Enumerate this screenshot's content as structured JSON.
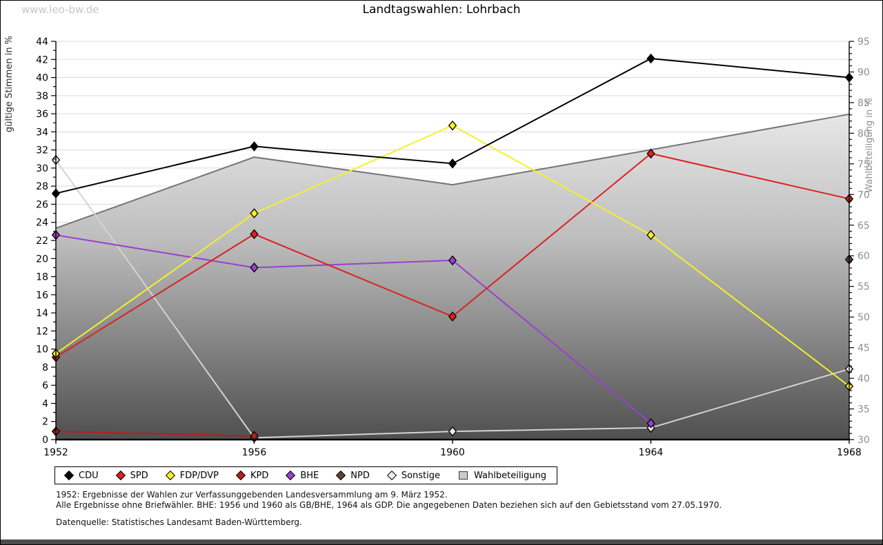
{
  "page": {
    "watermark": "www.leo-bw.de",
    "title": "Landtagswahlen: Lohrbach"
  },
  "chart_data": {
    "type": "line",
    "title": "Landtagswahlen: Lohrbach",
    "x": [
      1952,
      1956,
      1960,
      1964,
      1968
    ],
    "left_axis": {
      "label": "gültige Stimmen in %",
      "min": 0,
      "max": 44,
      "tick_step": 2,
      "minor_step": 1
    },
    "right_axis": {
      "label": "Wahlbeteiligung in %",
      "min": 30,
      "max": 95,
      "tick_step": 5,
      "minor_step": 1
    },
    "grid": "horizontal",
    "legend_position": "bottom",
    "series": [
      {
        "name": "CDU",
        "kind": "line",
        "axis": "left",
        "color": "#000000",
        "values": [
          27.2,
          32.4,
          30.5,
          42.1,
          40.0
        ]
      },
      {
        "name": "SPD",
        "kind": "line",
        "axis": "left",
        "color": "#dc2020",
        "values": [
          9.1,
          22.7,
          13.6,
          31.6,
          26.6
        ]
      },
      {
        "name": "FDP/DVP",
        "kind": "line",
        "axis": "left",
        "color": "#f5f02a",
        "values": [
          9.5,
          25.0,
          34.7,
          22.6,
          5.9
        ]
      },
      {
        "name": "KPD",
        "kind": "line",
        "axis": "left",
        "color": "#bb1c1c",
        "values": [
          0.9,
          0.4,
          null,
          null,
          null
        ]
      },
      {
        "name": "BHE",
        "kind": "line",
        "axis": "left",
        "color": "#9a3fcf",
        "values": [
          22.6,
          19.0,
          19.8,
          1.8,
          null
        ]
      },
      {
        "name": "NPD",
        "kind": "line",
        "axis": "left",
        "color": "#5e4433",
        "values": [
          null,
          null,
          null,
          null,
          19.9
        ]
      },
      {
        "name": "Sonstige",
        "kind": "line",
        "axis": "left",
        "color": "#d4d4d4",
        "marker_fill": "#ececec",
        "values": [
          30.9,
          0.2,
          0.9,
          1.3,
          7.8
        ]
      },
      {
        "name": "Wahlbeteiligung",
        "kind": "area",
        "axis": "right",
        "stroke": "#747474",
        "fill_top": "#ffffff",
        "fill_mid": "#bdbdbd",
        "fill_bottom": "#4f4f4f",
        "values": [
          64.5,
          76.1,
          71.6,
          77.3,
          83.1
        ]
      }
    ]
  },
  "notes": {
    "line1": "1952: Ergebnisse der Wahlen zur Verfassunggebenden Landesversammlung am 9. März 1952.",
    "line2": "Alle Ergebnisse ohne Briefwähler. BHE: 1956 und 1960 als GB/BHE, 1964 als GDP. Die angegebenen Daten beziehen sich auf den Gebietsstand vom 27.05.1970.",
    "source": "Datenquelle: Statistisches Landesamt Baden-Württemberg."
  }
}
